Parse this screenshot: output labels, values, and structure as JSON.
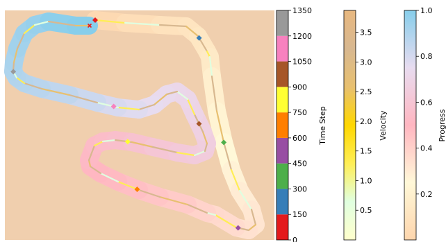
{
  "chart_data": {
    "type": "scatter",
    "title": "",
    "background_color": "#f0cfae",
    "track": {
      "description_colors": "track band colored by progress (0=peach, 0.5=pink/lavender, 1=sky blue)",
      "centerline": [
        [
          137,
          29
        ],
        [
          180,
          33
        ],
        [
          230,
          36
        ],
        [
          268,
          38
        ],
        [
          285,
          52
        ],
        [
          298,
          74
        ],
        [
          302,
          82
        ],
        [
          305,
          110
        ],
        [
          312,
          160
        ],
        [
          322,
          205
        ],
        [
          333,
          245
        ],
        [
          345,
          275
        ],
        [
          362,
          302
        ],
        [
          368,
          324
        ],
        [
          358,
          332
        ],
        [
          340,
          328
        ],
        [
          310,
          310
        ],
        [
          298,
          307
        ],
        [
          270,
          295
        ],
        [
          230,
          284
        ],
        [
          200,
          274
        ],
        [
          170,
          262
        ],
        [
          145,
          250
        ],
        [
          130,
          240
        ],
        [
          128,
          231
        ],
        [
          136,
          210
        ],
        [
          148,
          204
        ],
        [
          166,
          202
        ],
        [
          190,
          205
        ],
        [
          220,
          212
        ],
        [
          255,
          220
        ],
        [
          280,
          224
        ],
        [
          295,
          218
        ],
        [
          298,
          207
        ],
        [
          292,
          190
        ],
        [
          280,
          165
        ],
        [
          270,
          143
        ],
        [
          255,
          132
        ],
        [
          240,
          136
        ],
        [
          222,
          151
        ],
        [
          200,
          158
        ],
        [
          170,
          155
        ],
        [
          140,
          148
        ],
        [
          100,
          137
        ],
        [
          60,
          128
        ],
        [
          35,
          120
        ],
        [
          24,
          112
        ],
        [
          19,
          103
        ],
        [
          20,
          90
        ],
        [
          25,
          70
        ],
        [
          35,
          48
        ],
        [
          50,
          36
        ],
        [
          70,
          31
        ],
        [
          109,
          37
        ],
        [
          128,
          37
        ]
      ]
    },
    "markers": [
      {
        "time_step": 0,
        "color": "#e41a1c",
        "shape": "diamond"
      },
      {
        "time_step": 150,
        "color": "#377eb8",
        "shape": "diamond"
      },
      {
        "time_step": 300,
        "color": "#4daf4a",
        "shape": "diamond"
      },
      {
        "time_step": 450,
        "color": "#984ea3",
        "shape": "diamond"
      },
      {
        "time_step": 600,
        "color": "#ff7f00",
        "shape": "diamond"
      },
      {
        "time_step": 750,
        "color": "#ffff33",
        "shape": "diamond"
      },
      {
        "time_step": 900,
        "color": "#a65628",
        "shape": "diamond"
      },
      {
        "time_step": 1050,
        "color": "#f781bf",
        "shape": "diamond"
      },
      {
        "time_step": 1200,
        "color": "#999999",
        "shape": "diamond"
      }
    ],
    "end_marker": {
      "color": "#e41a1c",
      "shape": "x"
    },
    "colorbars": [
      {
        "label": "Time Step",
        "type": "discrete",
        "range": [
          0,
          1350
        ],
        "ticks": [
          "0",
          "150",
          "300",
          "450",
          "600",
          "750",
          "900",
          "1050",
          "1200",
          "1350"
        ],
        "colors": [
          "#e41a1c",
          "#377eb8",
          "#4daf4a",
          "#984ea3",
          "#ff7f00",
          "#ffff33",
          "#a65628",
          "#f781bf",
          "#999999"
        ]
      },
      {
        "label": "Velocity",
        "type": "continuous",
        "range": [
          0.0,
          3.87
        ],
        "ticks": [
          "0.5",
          "1.0",
          "1.5",
          "2.0",
          "2.5",
          "3.0",
          "3.5"
        ],
        "tick_values": [
          0.5,
          1.0,
          1.5,
          2.0,
          2.5,
          3.0,
          3.5
        ],
        "stops": [
          "#ffffcc",
          "#e0ffe0",
          "#ffee55",
          "#ffd700",
          "#e8c070",
          "#d8b890",
          "#e8b880"
        ]
      },
      {
        "label": "Progress",
        "type": "continuous",
        "range": [
          0.0,
          1.0
        ],
        "ticks": [
          "0.2",
          "0.4",
          "0.6",
          "0.8",
          "1.0"
        ],
        "tick_values": [
          0.2,
          0.4,
          0.6,
          0.8,
          1.0
        ],
        "stops": [
          "#fdd5ad",
          "#fff8d8",
          "#ffb6c1",
          "#e8dcf0",
          "#87ceeb"
        ]
      }
    ]
  }
}
